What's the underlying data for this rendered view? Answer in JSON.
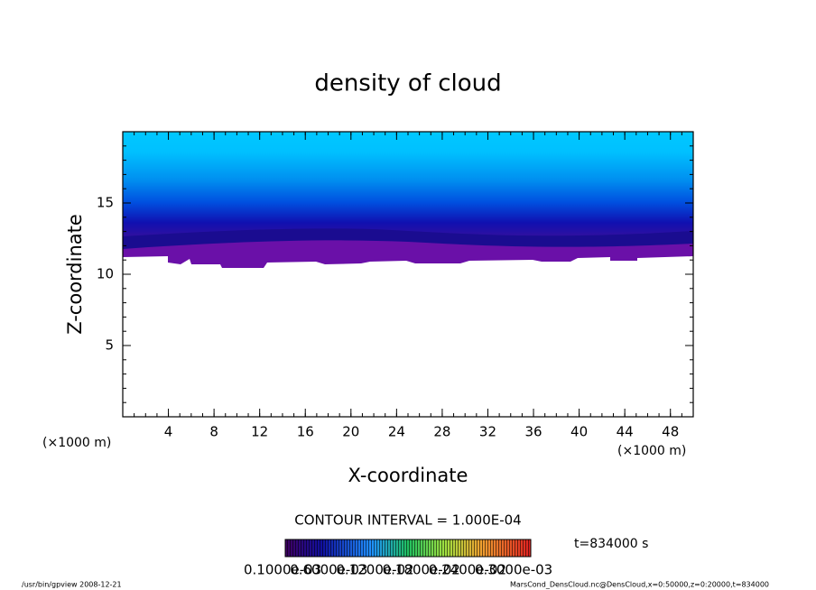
{
  "chart_data": {
    "type": "contour",
    "title": "density of cloud",
    "x_label": "X-coordinate",
    "y_label": "Z-coordinate",
    "x_unit": "(×1000 m)",
    "y_unit": "(×1000 m)",
    "xlim": [
      0,
      50
    ],
    "ylim": [
      0,
      20
    ],
    "xticks": [
      4,
      8,
      12,
      16,
      20,
      24,
      28,
      32,
      36,
      40,
      44,
      48
    ],
    "yticks": [
      5,
      10,
      15
    ],
    "contour_interval": "CONTOUR INTERVAL = 1.000E-04",
    "time": "t=834000 s",
    "colorbar_labels": [
      "0.1000e-03",
      "0.6000e-03",
      "0.1200e-02",
      "0.1800e-02",
      "0.2400e-02",
      "0.3000e-03"
    ]
  },
  "footer": {
    "left": "/usr/bin/gpview   2008-12-21",
    "right": "MarsCond_DensCloud.nc@DensCloud,x=0:50000,z=0:20000,t=834000"
  }
}
